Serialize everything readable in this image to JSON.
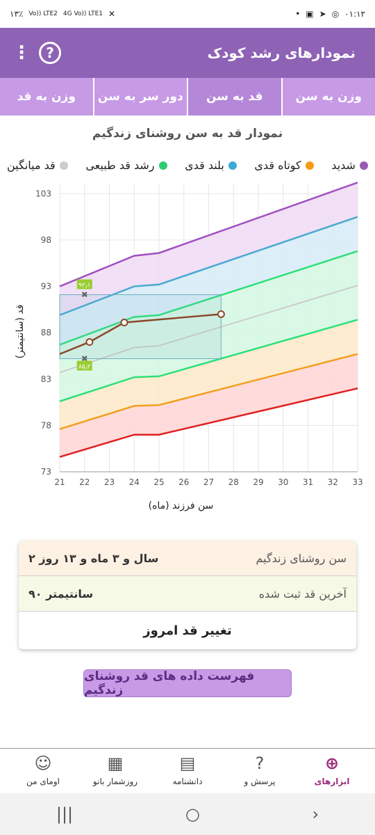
{
  "status_bar": {
    "time": "۰۱:۱۲",
    "battery": "۱۳٪",
    "net1": "Vo)) LTE2",
    "net2": "4G Vo)) LTE1"
  },
  "app_bar": {
    "title": "نمودارهای رشد کودک",
    "help_label": "?"
  },
  "tabs": [
    {
      "label": "وزن به سن",
      "active": false
    },
    {
      "label": "قد به سن",
      "active": true
    },
    {
      "label": "دور سر به سن",
      "active": false
    },
    {
      "label": "وزن به قد",
      "active": false
    }
  ],
  "chart_title": "نمودار قد به سن روشنای زندگیم",
  "legend": [
    {
      "label": "شدید",
      "color": "#9b59b6"
    },
    {
      "label": "کوتاه قدی",
      "color": "#f39c12"
    },
    {
      "label": "بلند قدی",
      "color": "#3fa9d6"
    },
    {
      "label": "رشد قد طبیعی",
      "color": "#2ecc71"
    },
    {
      "label": "قد میانگین",
      "color": "#cccccc"
    }
  ],
  "chart_data": {
    "type": "line",
    "xlabel": "سن فرزند (ماه)",
    "ylabel": "قد (سانتیمتر)",
    "xlim": [
      21,
      33
    ],
    "ylim": [
      73,
      104
    ],
    "x_ticks": [
      21,
      22,
      23,
      24,
      25,
      26,
      27,
      28,
      29,
      30,
      31,
      32,
      33
    ],
    "y_ticks": [
      73,
      78,
      83,
      88,
      93,
      98,
      103
    ],
    "curves": [
      {
        "id": "red",
        "color": "#e02020",
        "points": [
          [
            21,
            74.6
          ],
          [
            24,
            77.0
          ],
          [
            25,
            77.0
          ],
          [
            33,
            82.0
          ]
        ]
      },
      {
        "id": "orange",
        "color": "#f0a020",
        "points": [
          [
            21,
            77.6
          ],
          [
            24,
            80.1
          ],
          [
            25,
            80.2
          ],
          [
            33,
            85.7
          ]
        ]
      },
      {
        "id": "green-low",
        "color": "#2ee07a",
        "points": [
          [
            21,
            80.6
          ],
          [
            24,
            83.2
          ],
          [
            25,
            83.3
          ],
          [
            33,
            89.4
          ]
        ]
      },
      {
        "id": "grey-mean",
        "color": "#cccccc",
        "points": [
          [
            21,
            83.7
          ],
          [
            24,
            86.4
          ],
          [
            25,
            86.6
          ],
          [
            33,
            93.1
          ]
        ]
      },
      {
        "id": "green-high",
        "color": "#2ee07a",
        "points": [
          [
            21,
            86.7
          ],
          [
            24,
            89.7
          ],
          [
            25,
            89.9
          ],
          [
            33,
            96.8
          ]
        ]
      },
      {
        "id": "blue",
        "color": "#4aa8d0",
        "points": [
          [
            21,
            89.9
          ],
          [
            24,
            93.0
          ],
          [
            25,
            93.2
          ],
          [
            33,
            100.5
          ]
        ]
      },
      {
        "id": "purple",
        "color": "#a04fc0",
        "points": [
          [
            21,
            93.0
          ],
          [
            24,
            96.3
          ],
          [
            25,
            96.6
          ],
          [
            33,
            104.2
          ]
        ]
      }
    ],
    "bands": [
      {
        "lower": "red",
        "upper": "orange",
        "color": "#ffd5d5"
      },
      {
        "lower": "orange",
        "upper": "green-low",
        "color": "#fde9c8"
      },
      {
        "lower": "green-low",
        "upper": "green-high",
        "color": "#d4f7e2"
      },
      {
        "lower": "green-high",
        "upper": "blue",
        "color": "#d6ebf6"
      },
      {
        "lower": "blue",
        "upper": "purple",
        "color": "#eedbf5"
      }
    ],
    "child_series": {
      "color": "#8a4a2a",
      "points": [
        [
          21,
          85.7
        ],
        [
          22.2,
          87.0
        ],
        [
          23.6,
          89.1
        ],
        [
          27.5,
          90.0
        ]
      ]
    },
    "range_box": {
      "x": [
        21,
        27.5
      ],
      "y": [
        85.2,
        92.1
      ],
      "color": "#6aaec2"
    },
    "markers": [
      {
        "x": 22,
        "y": 92.1,
        "label": "۹۲٫۱"
      },
      {
        "x": 22,
        "y": 85.2,
        "label": "۸۵٫۲"
      }
    ]
  },
  "info": {
    "age_label": "سن روشنای زندگیم",
    "age_value": "۲ سال و ۳ ماه و ۱۳ روز",
    "last_label": "آخرین قد ثبت شده",
    "last_value": "۹۰ سانتیمتر",
    "action_label": "تغییر قد امروز"
  },
  "list_button": "فهرست داده های قد روشنای زندگیم",
  "bottom_nav": [
    {
      "label": "ابزارهای",
      "icon": "medical-kit-icon",
      "glyph": "⊕",
      "active": true
    },
    {
      "label": "پرسش و",
      "icon": "question-bubble-icon",
      "glyph": "?",
      "active": false
    },
    {
      "label": "دانشنامه",
      "icon": "book-icon",
      "glyph": "▤",
      "active": false
    },
    {
      "label": "روزشمار بانو",
      "icon": "calendar-icon",
      "glyph": "▦",
      "active": false
    },
    {
      "label": "اومای من",
      "icon": "user-icon",
      "glyph": "☺",
      "active": false
    }
  ],
  "sys_nav": {
    "recents": "|||",
    "home": "○",
    "back": "›"
  }
}
